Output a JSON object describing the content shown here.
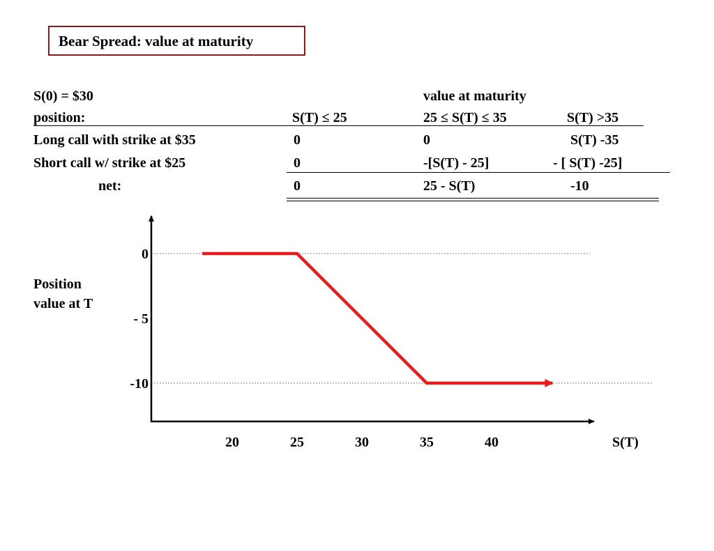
{
  "title": "Bear Spread: value at maturity",
  "table": {
    "s0_label": "S(0) = $30",
    "header_value": "value at maturity",
    "position_label": "position:",
    "col1_header": "S(T) ≤  25",
    "col2_header": "25 ≤ S(T) ≤  35",
    "col3_header": "S(T) >35",
    "rows": [
      {
        "label": "Long call with strike at $35",
        "c1": "0",
        "c2": "0",
        "c3": "S(T) -35"
      },
      {
        "label": "Short call w/   strike at  $25",
        "c1": "0",
        "c2": "-[S(T) - 25]",
        "c3": "- [ S(T) -25]"
      },
      {
        "label": "net:",
        "c1": "0",
        "c2": "25 - S(T)",
        "c3": "-10"
      }
    ]
  },
  "colors": {
    "payoff_line": "#e81c1c",
    "title_border": "#8b1a1a"
  },
  "chart_data": {
    "type": "line",
    "title": "",
    "xlabel": "S(T)",
    "ylabel": "Position\nvalue at T",
    "ylabel_lines": [
      "Position",
      "value at T"
    ],
    "x_ticks": [
      "20",
      "25",
      "30",
      "35",
      "40"
    ],
    "y_ticks": [
      "0",
      "- 5",
      "-10"
    ],
    "series": [
      {
        "x": [
          17.7,
          25,
          35,
          44.7
        ],
        "y": [
          0,
          0,
          -10,
          -10
        ]
      }
    ],
    "reference_lines": [
      0,
      -10
    ],
    "arrow_at_end": true
  }
}
